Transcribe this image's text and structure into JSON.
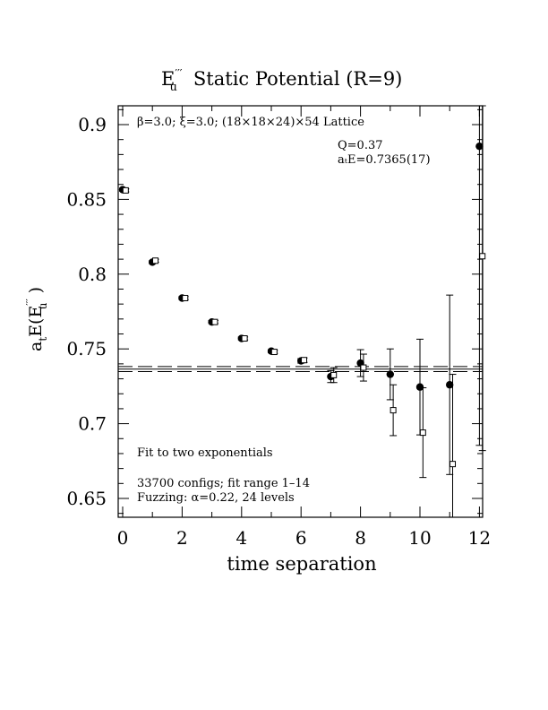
{
  "chart_data": {
    "type": "scatter",
    "title": {
      "e_main": "E",
      "e_sup": "′′′",
      "e_sub": "u",
      "rest": "Static Potential (R=9)"
    },
    "xlabel": "time separation",
    "ylabel": {
      "main": "a",
      "sub_t": "t",
      "mid": "E(E",
      "sup": "′′′",
      "sub_u": "u",
      "end": " )"
    },
    "xlim": [
      0,
      12.1
    ],
    "ylim": [
      0.64,
      0.913
    ],
    "xticks": [
      0,
      2,
      4,
      6,
      8,
      10,
      12
    ],
    "yticks": [
      0.65,
      0.7,
      0.75,
      0.8,
      0.85,
      0.9
    ],
    "ytick_labels": [
      "0.65",
      "0.7",
      "0.75",
      "0.8",
      "0.85",
      "0.9"
    ],
    "xtick_labels": [
      "0",
      "2",
      "4",
      "6",
      "8",
      "10",
      "12"
    ],
    "annotations": {
      "lattice": "β=3.0; ξ=3.0; (18×18×24)×54 Lattice",
      "q": "Q=0.37",
      "ate": "aₜE=0.7365(17)",
      "fit": "Fit to two exponentials",
      "configs": "33700 configs; fit range 1–14",
      "fuzzing": "Fuzzing: α=0.22, 24 levels"
    },
    "fit_band": {
      "center": 0.7365,
      "lower": 0.7348,
      "upper": 0.7382
    },
    "series": [
      {
        "marker": "filled-circle",
        "points": [
          {
            "x": 0,
            "y": 0.8565,
            "err": 0.001
          },
          {
            "x": 1,
            "y": 0.808,
            "err": 0.001
          },
          {
            "x": 2,
            "y": 0.784,
            "err": 0.001
          },
          {
            "x": 3,
            "y": 0.768,
            "err": 0.001
          },
          {
            "x": 4,
            "y": 0.757,
            "err": 0.001
          },
          {
            "x": 5,
            "y": 0.7485,
            "err": 0.001
          },
          {
            "x": 6,
            "y": 0.742,
            "err": 0.0015
          },
          {
            "x": 7,
            "y": 0.7315,
            "err": 0.004
          },
          {
            "x": 8,
            "y": 0.7405,
            "err": 0.009
          },
          {
            "x": 9,
            "y": 0.733,
            "err": 0.017
          },
          {
            "x": 10,
            "y": 0.7245,
            "err": 0.032
          },
          {
            "x": 11,
            "y": 0.726,
            "err": 0.06
          },
          {
            "x": 12,
            "y": 0.8855,
            "err": 0.2
          }
        ]
      },
      {
        "marker": "open-square",
        "points": [
          {
            "x": 0.1,
            "y": 0.856,
            "err": 0.001
          },
          {
            "x": 1.1,
            "y": 0.809,
            "err": 0.001
          },
          {
            "x": 2.1,
            "y": 0.784,
            "err": 0.001
          },
          {
            "x": 3.1,
            "y": 0.768,
            "err": 0.001
          },
          {
            "x": 4.1,
            "y": 0.757,
            "err": 0.001
          },
          {
            "x": 5.1,
            "y": 0.748,
            "err": 0.001
          },
          {
            "x": 6.1,
            "y": 0.7425,
            "err": 0.0015
          },
          {
            "x": 7.1,
            "y": 0.7325,
            "err": 0.005
          },
          {
            "x": 8.1,
            "y": 0.7375,
            "err": 0.009
          },
          {
            "x": 9.1,
            "y": 0.709,
            "err": 0.017
          },
          {
            "x": 10.1,
            "y": 0.694,
            "err": 0.03
          },
          {
            "x": 11.1,
            "y": 0.673,
            "err": 0.06
          },
          {
            "x": 12.1,
            "y": 0.812,
            "err": 0.13
          }
        ]
      }
    ]
  }
}
